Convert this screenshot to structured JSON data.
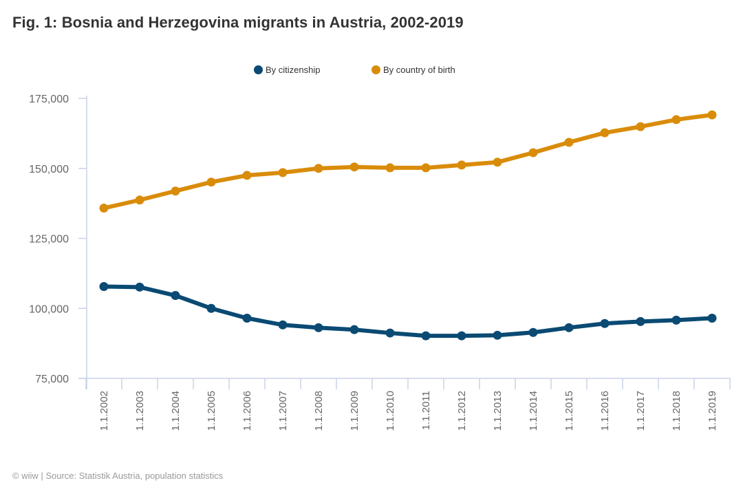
{
  "chart_data": {
    "type": "line",
    "title": "Fig. 1: Bosnia and Herzegovina migrants in Austria, 2002-2019",
    "xlabel": "",
    "ylabel": "",
    "x": [
      "1.1.2002",
      "1.1.2003",
      "1.1.2004",
      "1.1.2005",
      "1.1.2006",
      "1.1.2007",
      "1.1.2008",
      "1.1.2009",
      "1.1.2010",
      "1.1.2011",
      "1.1.2012",
      "1.1.2013",
      "1.1.2014",
      "1.1.2015",
      "1.1.2016",
      "1.1.2017",
      "1.1.2018",
      "1.1.2019"
    ],
    "ylim": [
      75000,
      175000
    ],
    "yticks": [
      75000,
      100000,
      125000,
      150000,
      175000
    ],
    "ytick_labels": [
      "75,000",
      "100,000",
      "125,000",
      "150,000",
      "175,000"
    ],
    "grid": false,
    "legend_position": "top-center",
    "series": [
      {
        "name": "By citizenship",
        "color": "#0a4a73",
        "values": [
          107800,
          107600,
          104600,
          100000,
          96500,
          94100,
          93100,
          92400,
          91200,
          90200,
          90200,
          90400,
          91400,
          93100,
          94600,
          95300,
          95800,
          96500
        ]
      },
      {
        "name": "By country of birth",
        "color": "#d98c0a",
        "values": [
          135800,
          138700,
          141900,
          145100,
          147500,
          148500,
          150000,
          150500,
          150200,
          150200,
          151200,
          152200,
          155600,
          159300,
          162700,
          164900,
          167400,
          169100
        ]
      }
    ],
    "footer": "© wiiw | Source: Statistik Austria, population statistics"
  },
  "colors": {
    "axis": "#c8d2e8",
    "title_text": "#333333",
    "tick_text": "#666666",
    "footer_text": "#999999"
  }
}
